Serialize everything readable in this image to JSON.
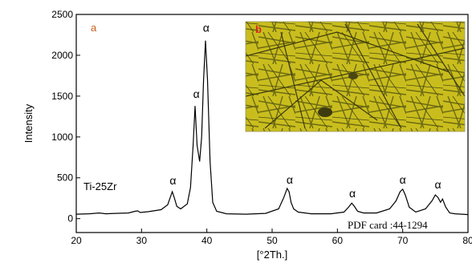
{
  "chart_data": {
    "type": "line",
    "xlabel": "[°2Th.]",
    "ylabel": "Intensity",
    "xlim": [
      20,
      80
    ],
    "ylim": [
      -170,
      2500
    ],
    "xticks": [
      20,
      30,
      40,
      50,
      60,
      70,
      80
    ],
    "yticks": [
      0,
      500,
      1000,
      1500,
      2000,
      2500
    ],
    "panel_a_label": "a",
    "panel_b_label": "b",
    "series": [
      {
        "name": "Ti-25Zr",
        "x": [
          20,
          22,
          23.5,
          24.5,
          26,
          28,
          29,
          29.4,
          29.8,
          31,
          33,
          34,
          34.4,
          34.7,
          35.0,
          35.4,
          36,
          37,
          37.5,
          37.9,
          38.2,
          38.5,
          38.9,
          39.2,
          39.5,
          39.8,
          40.1,
          40.5,
          40.9,
          41.5,
          43,
          46,
          49,
          51,
          51.8,
          52.3,
          52.6,
          52.9,
          53.3,
          54,
          56,
          59,
          61,
          61.7,
          62.2,
          62.6,
          63.1,
          64,
          66,
          68,
          69.0,
          69.6,
          70.0,
          70.4,
          71.0,
          72,
          73.5,
          74.5,
          75.0,
          75.4,
          75.8,
          76.1,
          76.6,
          77.2,
          78,
          79,
          80
        ],
        "y": [
          55,
          60,
          70,
          60,
          65,
          70,
          90,
          95,
          75,
          85,
          110,
          170,
          260,
          330,
          260,
          150,
          120,
          180,
          380,
          900,
          1380,
          900,
          700,
          1000,
          1700,
          2180,
          1700,
          700,
          200,
          90,
          60,
          55,
          65,
          120,
          260,
          370,
          330,
          200,
          120,
          80,
          60,
          60,
          80,
          140,
          190,
          150,
          90,
          70,
          70,
          120,
          220,
          330,
          360,
          290,
          140,
          80,
          120,
          220,
          290,
          260,
          200,
          240,
          140,
          70,
          60,
          55,
          50
        ]
      }
    ],
    "annotations": [
      {
        "text": "α",
        "x": 34.8,
        "y": 420
      },
      {
        "text": "α",
        "x": 38.4,
        "y": 1480
      },
      {
        "text": "α",
        "x": 39.9,
        "y": 2290
      },
      {
        "text": "α",
        "x": 52.7,
        "y": 430
      },
      {
        "text": "α",
        "x": 62.3,
        "y": 260
      },
      {
        "text": "α",
        "x": 70.0,
        "y": 430
      },
      {
        "text": "α",
        "x": 75.4,
        "y": 370
      }
    ],
    "pdf_card": "PDF card :44-1294",
    "grid": false
  }
}
